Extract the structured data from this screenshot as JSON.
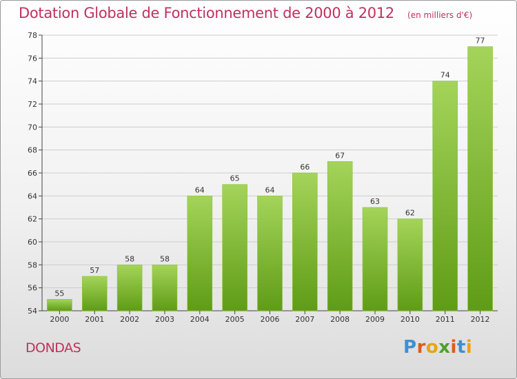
{
  "title": "Dotation Globale de Fonctionnement de 2000 à 2012",
  "unit": "(en milliers d'€)",
  "commune": "DONDAS",
  "logo": {
    "text": "Proxiti",
    "letter_colors": [
      "#3f8fd2",
      "#e05a1f",
      "#e8a316",
      "#4e9f2d",
      "#e05a1f",
      "#3f8fd2",
      "#e8a316"
    ]
  },
  "colors": {
    "bar_light": "#a4d45a",
    "bar_dark": "#5f9c16",
    "grid": "#cccccc",
    "axis": "#444444",
    "title": "#c0305e"
  },
  "chart_data": {
    "type": "bar",
    "categories": [
      "2000",
      "2001",
      "2002",
      "2003",
      "2004",
      "2005",
      "2006",
      "2007",
      "2008",
      "2009",
      "2010",
      "2011",
      "2012"
    ],
    "values": [
      55,
      57,
      58,
      58,
      64,
      65,
      64,
      66,
      67,
      63,
      62,
      74,
      77
    ],
    "ylim": [
      54,
      78
    ],
    "yticks": [
      54,
      56,
      58,
      60,
      62,
      64,
      66,
      68,
      70,
      72,
      74,
      76,
      78
    ],
    "grid": "horizontal",
    "data_labels": true
  }
}
